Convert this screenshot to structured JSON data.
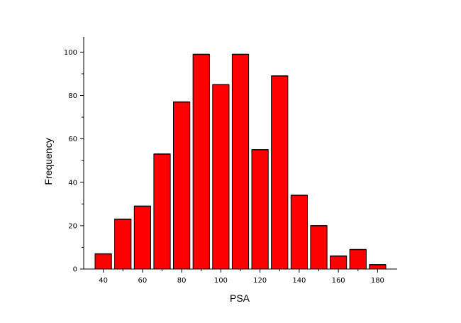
{
  "chart_data": {
    "type": "bar",
    "xlabel": "PSA",
    "ylabel": "Frequency",
    "bar_color": "#ff0000",
    "bar_edge_color": "#000000",
    "x_ticks": [
      "40",
      "60",
      "80",
      "100",
      "120",
      "140",
      "160",
      "180"
    ],
    "y_ticks": [
      "0",
      "20",
      "40",
      "60",
      "80",
      "100"
    ],
    "xlim": [
      30,
      190
    ],
    "ylim": [
      0,
      107
    ],
    "bin_width": 10,
    "bin_centers": [
      40,
      50,
      60,
      70,
      80,
      90,
      100,
      110,
      120,
      130,
      140,
      150,
      160,
      170,
      180
    ],
    "values": [
      7,
      23,
      29,
      53,
      77,
      99,
      85,
      99,
      55,
      89,
      34,
      20,
      6,
      9,
      2
    ],
    "grid": false
  }
}
